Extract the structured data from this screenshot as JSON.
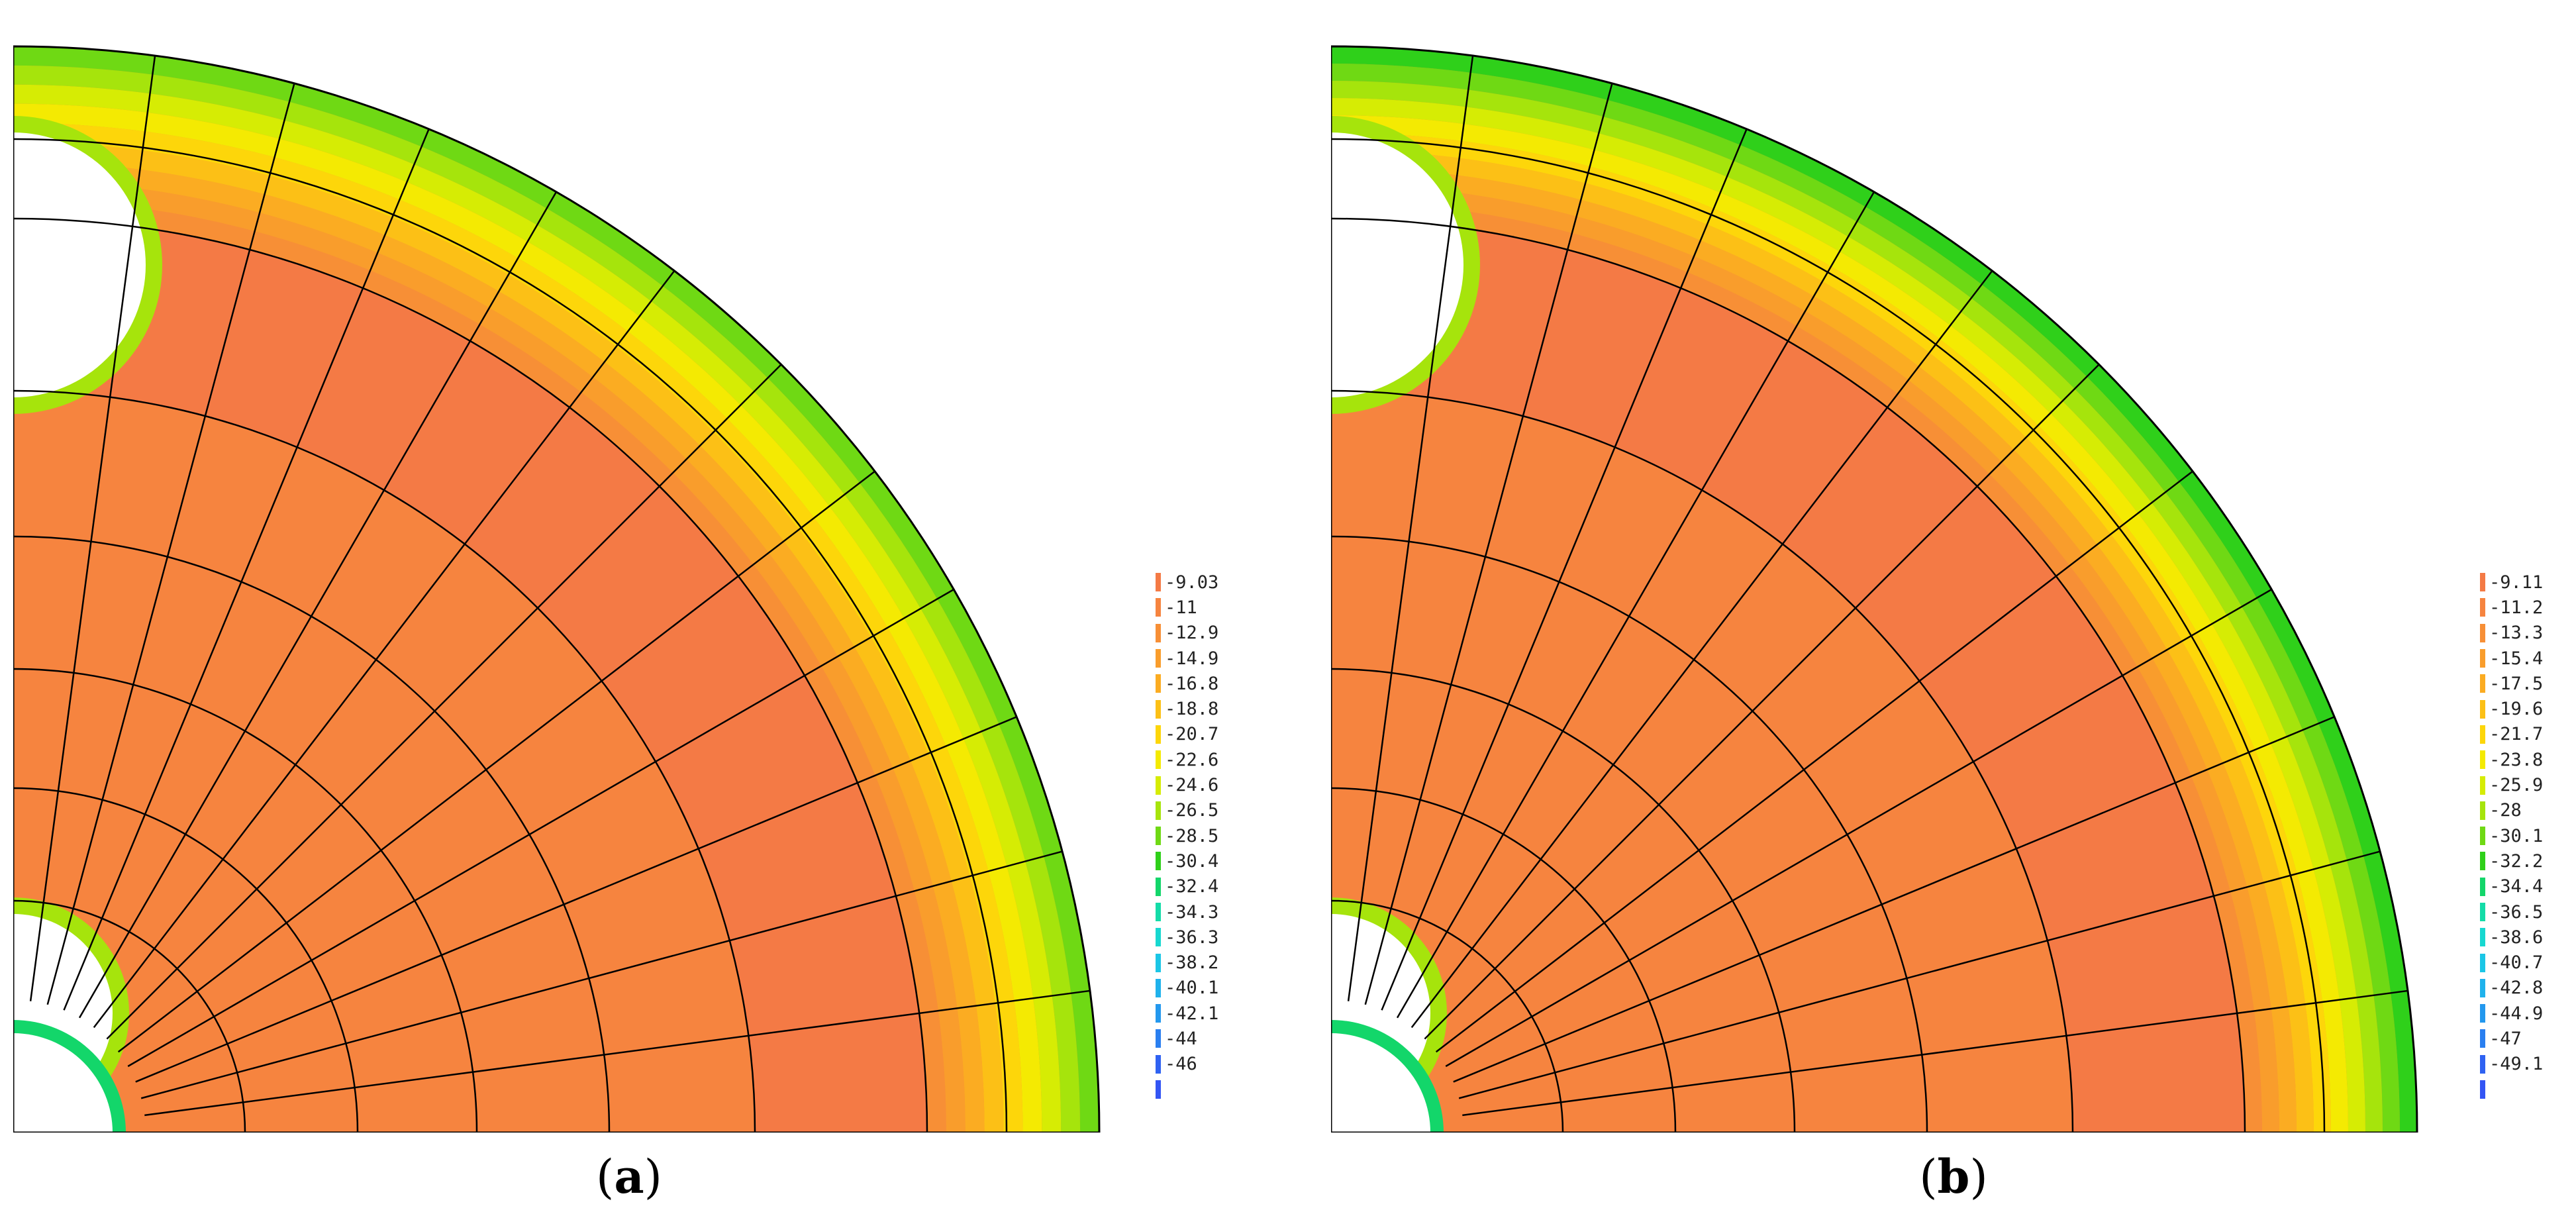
{
  "panels": [
    {
      "id": "a",
      "caption_open": "(",
      "caption_letter": "a",
      "caption_close": ")",
      "legend": [
        "-9.03",
        "-11",
        "-12.9",
        "-14.9",
        "-16.8",
        "-18.8",
        "-20.7",
        "-22.6",
        "-24.6",
        "-26.5",
        "-28.5",
        "-30.4",
        "-32.4",
        "-34.3",
        "-36.3",
        "-38.2",
        "-40.1",
        "-42.1",
        "-44",
        "-46",
        ""
      ]
    },
    {
      "id": "b",
      "caption_open": "(",
      "caption_letter": "b",
      "caption_close": ")",
      "legend": [
        "-9.11",
        "-11.2",
        "-13.3",
        "-15.4",
        "-17.5",
        "-19.6",
        "-21.7",
        "-23.8",
        "-25.9",
        "-28",
        "-30.1",
        "-32.2",
        "-34.4",
        "-36.5",
        "-38.6",
        "-40.7",
        "-42.8",
        "-44.9",
        "-47",
        "-49.1",
        ""
      ]
    }
  ],
  "colors": {
    "bands": [
      "#f47a45",
      "#f6843f",
      "#f78f36",
      "#f99d2c",
      "#fbac22",
      "#fcc016",
      "#fdd60a",
      "#f4ea02",
      "#d6ec04",
      "#a6e40c",
      "#6fd914",
      "#2fd01a",
      "#13d66a",
      "#14dca8",
      "#17d8d0",
      "#1bc6e6",
      "#1fb2ec",
      "#2398ee",
      "#2a7ff0",
      "#2f62f2",
      "#3355f4"
    ],
    "mesh": "#000000"
  }
}
